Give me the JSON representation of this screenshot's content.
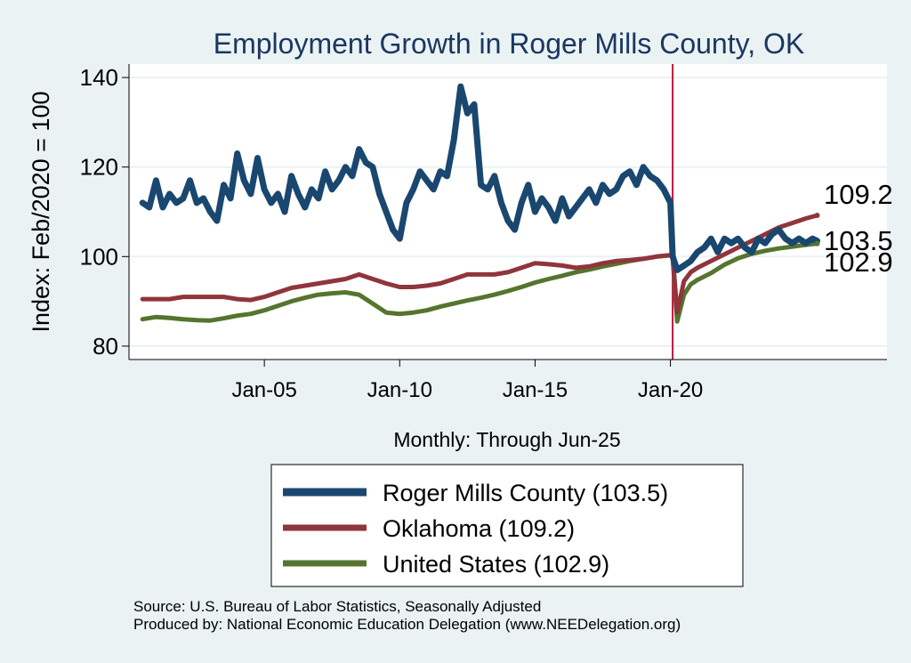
{
  "chart_data": {
    "type": "line",
    "title": "Employment Growth in Roger Mills  County, OK",
    "xlabel": "Monthly: Through Jun-25",
    "ylabel": "Index: Feb/2020 = 100",
    "xlim": [
      2000.0,
      2028.0
    ],
    "ylim": [
      77,
      143
    ],
    "x_ticks": [
      {
        "value": 2005.0,
        "label": "Jan-05"
      },
      {
        "value": 2010.0,
        "label": "Jan-10"
      },
      {
        "value": 2015.0,
        "label": "Jan-15"
      },
      {
        "value": 2020.0,
        "label": "Jan-20"
      }
    ],
    "y_ticks": [
      80,
      100,
      120,
      140
    ],
    "reference_line": {
      "x": 2020.083,
      "color": "#c0143c"
    },
    "series": [
      {
        "name": "Roger Mills  County",
        "legend_label": "Roger Mills  County (103.5)",
        "end_label": "103.5",
        "color": "#1a476f",
        "width": 7,
        "points": [
          [
            2000.5,
            112
          ],
          [
            2000.75,
            111
          ],
          [
            2001.0,
            117
          ],
          [
            2001.25,
            111
          ],
          [
            2001.5,
            114
          ],
          [
            2001.75,
            112
          ],
          [
            2002.0,
            113
          ],
          [
            2002.25,
            117
          ],
          [
            2002.5,
            112
          ],
          [
            2002.75,
            113
          ],
          [
            2003.0,
            110
          ],
          [
            2003.25,
            108
          ],
          [
            2003.5,
            116
          ],
          [
            2003.75,
            113
          ],
          [
            2004.0,
            123
          ],
          [
            2004.25,
            117
          ],
          [
            2004.5,
            114
          ],
          [
            2004.75,
            122
          ],
          [
            2005.0,
            115
          ],
          [
            2005.25,
            112
          ],
          [
            2005.5,
            114
          ],
          [
            2005.75,
            110
          ],
          [
            2006.0,
            118
          ],
          [
            2006.25,
            114
          ],
          [
            2006.5,
            111
          ],
          [
            2006.75,
            115
          ],
          [
            2007.0,
            113
          ],
          [
            2007.25,
            119
          ],
          [
            2007.5,
            115
          ],
          [
            2007.75,
            117
          ],
          [
            2008.0,
            120
          ],
          [
            2008.25,
            118
          ],
          [
            2008.5,
            124
          ],
          [
            2008.75,
            121
          ],
          [
            2009.0,
            120
          ],
          [
            2009.25,
            114
          ],
          [
            2009.5,
            110
          ],
          [
            2009.75,
            106
          ],
          [
            2010.0,
            104
          ],
          [
            2010.25,
            112
          ],
          [
            2010.5,
            115
          ],
          [
            2010.75,
            119
          ],
          [
            2011.0,
            117
          ],
          [
            2011.25,
            115
          ],
          [
            2011.5,
            119
          ],
          [
            2011.75,
            118
          ],
          [
            2012.0,
            126
          ],
          [
            2012.25,
            138
          ],
          [
            2012.5,
            132
          ],
          [
            2012.75,
            134
          ],
          [
            2013.0,
            116
          ],
          [
            2013.25,
            115
          ],
          [
            2013.5,
            118
          ],
          [
            2013.75,
            112
          ],
          [
            2014.0,
            108
          ],
          [
            2014.25,
            106
          ],
          [
            2014.5,
            112
          ],
          [
            2014.75,
            116
          ],
          [
            2015.0,
            110
          ],
          [
            2015.25,
            113
          ],
          [
            2015.5,
            111
          ],
          [
            2015.75,
            108
          ],
          [
            2016.0,
            113
          ],
          [
            2016.25,
            109
          ],
          [
            2016.5,
            111
          ],
          [
            2016.75,
            113
          ],
          [
            2017.0,
            115
          ],
          [
            2017.25,
            112
          ],
          [
            2017.5,
            116
          ],
          [
            2017.75,
            114
          ],
          [
            2018.0,
            115
          ],
          [
            2018.25,
            118
          ],
          [
            2018.5,
            119
          ],
          [
            2018.75,
            116
          ],
          [
            2019.0,
            120
          ],
          [
            2019.25,
            118
          ],
          [
            2019.5,
            117
          ],
          [
            2019.75,
            115
          ],
          [
            2020.0,
            112
          ],
          [
            2020.083,
            100
          ],
          [
            2020.25,
            97
          ],
          [
            2020.5,
            98
          ],
          [
            2020.75,
            99
          ],
          [
            2021.0,
            101
          ],
          [
            2021.25,
            102
          ],
          [
            2021.5,
            104
          ],
          [
            2021.75,
            101
          ],
          [
            2022.0,
            104
          ],
          [
            2022.25,
            103
          ],
          [
            2022.5,
            104
          ],
          [
            2022.75,
            102
          ],
          [
            2023.0,
            101
          ],
          [
            2023.25,
            104
          ],
          [
            2023.5,
            103
          ],
          [
            2023.75,
            105
          ],
          [
            2024.0,
            106
          ],
          [
            2024.25,
            104
          ],
          [
            2024.5,
            103
          ],
          [
            2024.75,
            104
          ],
          [
            2025.0,
            103
          ],
          [
            2025.25,
            104
          ],
          [
            2025.42,
            103.5
          ]
        ]
      },
      {
        "name": "Oklahoma",
        "legend_label": "Oklahoma (109.2)",
        "end_label": "109.2",
        "color": "#90353b",
        "width": 5,
        "points": [
          [
            2000.5,
            90.5
          ],
          [
            2001.0,
            90.5
          ],
          [
            2001.5,
            90.5
          ],
          [
            2002.0,
            91
          ],
          [
            2002.5,
            91
          ],
          [
            2003.0,
            91
          ],
          [
            2003.5,
            91
          ],
          [
            2004.0,
            90.5
          ],
          [
            2004.5,
            90.3
          ],
          [
            2005.0,
            91
          ],
          [
            2005.5,
            92
          ],
          [
            2006.0,
            93
          ],
          [
            2006.5,
            93.5
          ],
          [
            2007.0,
            94
          ],
          [
            2007.5,
            94.5
          ],
          [
            2008.0,
            95
          ],
          [
            2008.5,
            96
          ],
          [
            2009.0,
            95
          ],
          [
            2009.5,
            94
          ],
          [
            2010.0,
            93.2
          ],
          [
            2010.5,
            93.2
          ],
          [
            2011.0,
            93.5
          ],
          [
            2011.5,
            94
          ],
          [
            2012.0,
            95
          ],
          [
            2012.5,
            96
          ],
          [
            2013.0,
            96
          ],
          [
            2013.5,
            96
          ],
          [
            2014.0,
            96.5
          ],
          [
            2014.5,
            97.5
          ],
          [
            2015.0,
            98.5
          ],
          [
            2015.5,
            98.3
          ],
          [
            2016.0,
            98
          ],
          [
            2016.5,
            97.5
          ],
          [
            2017.0,
            97.8
          ],
          [
            2017.5,
            98.5
          ],
          [
            2018.0,
            99
          ],
          [
            2018.5,
            99.2
          ],
          [
            2019.0,
            99.5
          ],
          [
            2019.5,
            100
          ],
          [
            2020.0,
            100.3
          ],
          [
            2020.083,
            100
          ],
          [
            2020.25,
            87.5
          ],
          [
            2020.5,
            94.5
          ],
          [
            2020.75,
            96.5
          ],
          [
            2021.0,
            97.5
          ],
          [
            2021.5,
            99
          ],
          [
            2022.0,
            100.5
          ],
          [
            2022.5,
            102
          ],
          [
            2023.0,
            103.5
          ],
          [
            2023.5,
            105
          ],
          [
            2024.0,
            106.5
          ],
          [
            2024.5,
            107.5
          ],
          [
            2025.0,
            108.5
          ],
          [
            2025.42,
            109.2
          ]
        ]
      },
      {
        "name": "United States",
        "legend_label": "United States (102.9)",
        "end_label": "102.9",
        "color": "#55752f",
        "width": 5,
        "points": [
          [
            2000.5,
            86
          ],
          [
            2001.0,
            86.5
          ],
          [
            2001.5,
            86.3
          ],
          [
            2002.0,
            86
          ],
          [
            2002.5,
            85.8
          ],
          [
            2003.0,
            85.7
          ],
          [
            2003.5,
            86.2
          ],
          [
            2004.0,
            86.8
          ],
          [
            2004.5,
            87.2
          ],
          [
            2005.0,
            88
          ],
          [
            2005.5,
            89
          ],
          [
            2006.0,
            90
          ],
          [
            2006.5,
            90.8
          ],
          [
            2007.0,
            91.5
          ],
          [
            2007.5,
            91.8
          ],
          [
            2008.0,
            92
          ],
          [
            2008.5,
            91.5
          ],
          [
            2009.0,
            89.5
          ],
          [
            2009.5,
            87.5
          ],
          [
            2010.0,
            87.2
          ],
          [
            2010.5,
            87.5
          ],
          [
            2011.0,
            88
          ],
          [
            2011.5,
            88.8
          ],
          [
            2012.0,
            89.5
          ],
          [
            2012.5,
            90.2
          ],
          [
            2013.0,
            90.8
          ],
          [
            2013.5,
            91.5
          ],
          [
            2014.0,
            92.3
          ],
          [
            2014.5,
            93.2
          ],
          [
            2015.0,
            94.2
          ],
          [
            2015.5,
            95
          ],
          [
            2016.0,
            95.7
          ],
          [
            2016.5,
            96.5
          ],
          [
            2017.0,
            97.1
          ],
          [
            2017.5,
            97.8
          ],
          [
            2018.0,
            98.4
          ],
          [
            2018.5,
            99
          ],
          [
            2019.0,
            99.5
          ],
          [
            2019.5,
            100
          ],
          [
            2020.0,
            100.3
          ],
          [
            2020.083,
            100
          ],
          [
            2020.25,
            85.5
          ],
          [
            2020.5,
            91.5
          ],
          [
            2020.75,
            93.8
          ],
          [
            2021.0,
            94.8
          ],
          [
            2021.5,
            96.3
          ],
          [
            2022.0,
            98.2
          ],
          [
            2022.5,
            99.6
          ],
          [
            2023.0,
            100.6
          ],
          [
            2023.5,
            101.3
          ],
          [
            2024.0,
            101.8
          ],
          [
            2024.5,
            102.2
          ],
          [
            2025.0,
            102.6
          ],
          [
            2025.42,
            102.9
          ]
        ]
      }
    ],
    "source_lines": [
      "Source: U.S. Bureau of Labor Statistics, Seasonally Adjusted",
      "Produced by: National Economic Education Delegation (www.NEEDelegation.org)"
    ]
  }
}
